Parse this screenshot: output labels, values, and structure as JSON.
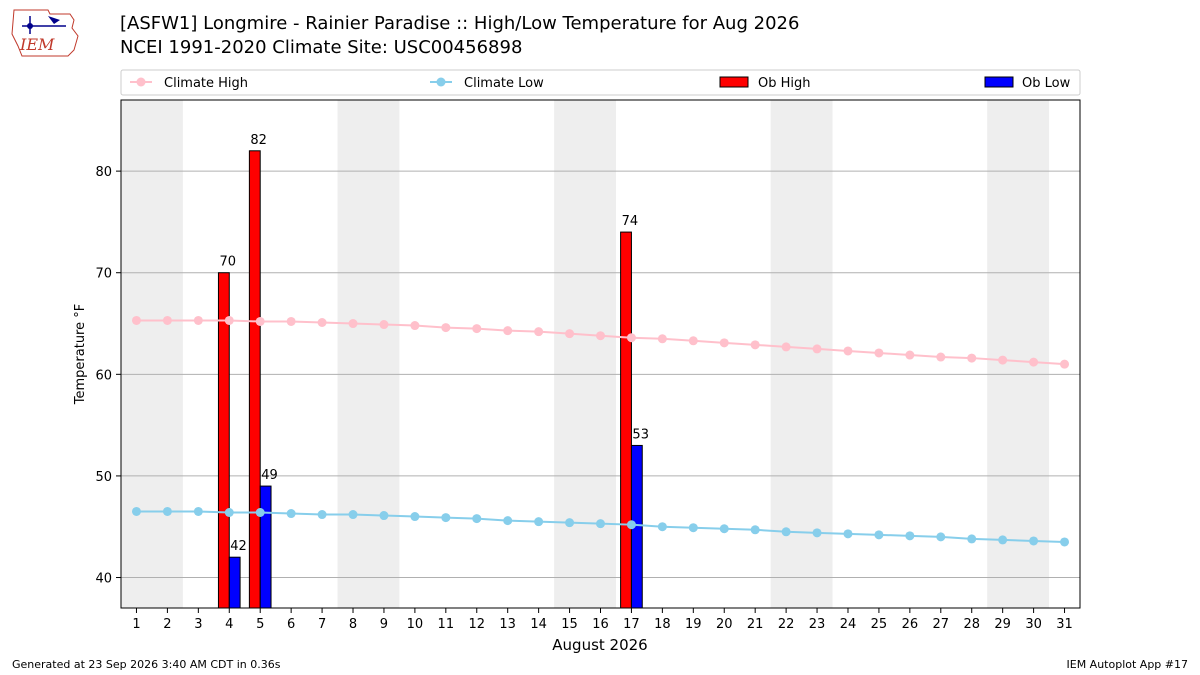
{
  "header": {
    "title": "[ASFW1] Longmire - Rainier Paradise :: High/Low Temperature for Aug 2026",
    "subtitle": "NCEI 1991-2020 Climate Site: USC00456898",
    "logo_text": "IEM"
  },
  "footer": {
    "generated": "Generated at 23 Sep 2026 3:40 AM CDT in 0.36s",
    "app": "IEM Autoplot App #17"
  },
  "chart_data": {
    "type": "bar",
    "xlabel": "August 2026",
    "ylabel": "Temperature °F",
    "xlim": [
      0.5,
      31.5
    ],
    "ylim": [
      37,
      87
    ],
    "yticks": [
      40,
      50,
      60,
      70,
      80
    ],
    "grid": "y",
    "weekend_shading": [
      [
        1,
        2
      ],
      [
        8,
        9
      ],
      [
        15,
        16
      ],
      [
        22,
        23
      ],
      [
        29,
        30
      ]
    ],
    "shade_color": "#eeeeee",
    "legend_position": "top",
    "days": [
      1,
      2,
      3,
      4,
      5,
      6,
      7,
      8,
      9,
      10,
      11,
      12,
      13,
      14,
      15,
      16,
      17,
      18,
      19,
      20,
      21,
      22,
      23,
      24,
      25,
      26,
      27,
      28,
      29,
      30,
      31
    ],
    "series": [
      {
        "name": "Climate High",
        "kind": "line",
        "color": "#ffc0cb",
        "values": [
          65.3,
          65.3,
          65.3,
          65.3,
          65.2,
          65.2,
          65.1,
          65.0,
          64.9,
          64.8,
          64.6,
          64.5,
          64.3,
          64.2,
          64.0,
          63.8,
          63.6,
          63.5,
          63.3,
          63.1,
          62.9,
          62.7,
          62.5,
          62.3,
          62.1,
          61.9,
          61.7,
          61.6,
          61.4,
          61.2,
          61.0
        ]
      },
      {
        "name": "Climate Low",
        "kind": "line",
        "color": "#87ceeb",
        "values": [
          46.5,
          46.5,
          46.5,
          46.4,
          46.4,
          46.3,
          46.2,
          46.2,
          46.1,
          46.0,
          45.9,
          45.8,
          45.6,
          45.5,
          45.4,
          45.3,
          45.2,
          45.0,
          44.9,
          44.8,
          44.7,
          44.5,
          44.4,
          44.3,
          44.2,
          44.1,
          44.0,
          43.8,
          43.7,
          43.6,
          43.5
        ]
      },
      {
        "name": "Ob High",
        "kind": "bar",
        "color": "#ff0000",
        "points": [
          {
            "day": 4,
            "value": 70
          },
          {
            "day": 5,
            "value": 82
          },
          {
            "day": 17,
            "value": 74
          }
        ]
      },
      {
        "name": "Ob Low",
        "kind": "bar",
        "color": "#0000ff",
        "points": [
          {
            "day": 4,
            "value": 42
          },
          {
            "day": 5,
            "value": 49
          },
          {
            "day": 17,
            "value": 53
          }
        ]
      }
    ]
  }
}
